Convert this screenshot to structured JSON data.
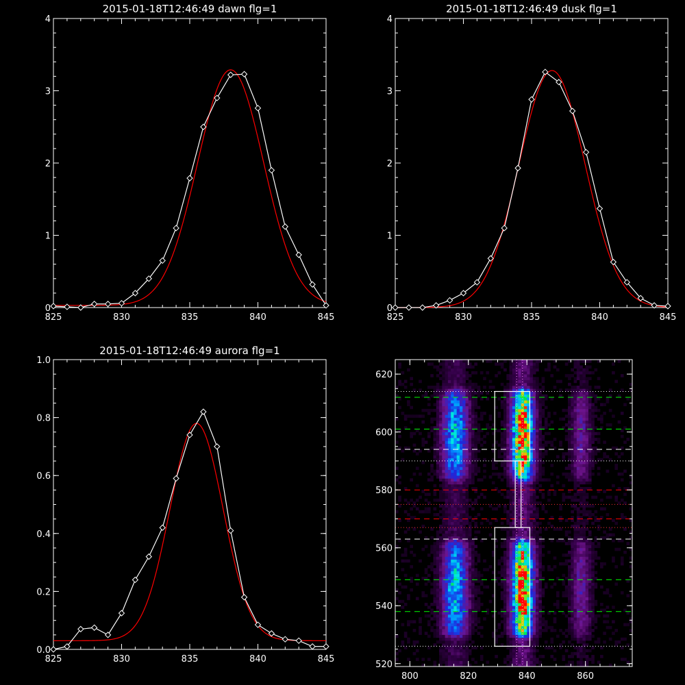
{
  "colors": {
    "background": "#000000",
    "axis": "#ffffff",
    "data_line": "#ffffff",
    "fit_line": "#ff0000",
    "green_guide": "#00ff00",
    "red_guide": "#ff0000",
    "white_guide": "#ffffff"
  },
  "chart_data": [
    {
      "type": "line",
      "title": "2015-01-18T12:46:49 dawn flg=1",
      "xlim": [
        825,
        845
      ],
      "ylim": [
        0,
        4
      ],
      "xticks": [
        "825",
        "830",
        "835",
        "840",
        "845"
      ],
      "yticks": [
        "0",
        "1",
        "2",
        "3",
        "4"
      ],
      "series": [
        {
          "style": "white-line-diamond-markers",
          "x": [
            825,
            826,
            827,
            828,
            829,
            830,
            831,
            832,
            833,
            834,
            835,
            836,
            837,
            838,
            839,
            840,
            841,
            842,
            843,
            844,
            845
          ],
          "y": [
            0.02,
            0.01,
            0.0,
            0.05,
            0.05,
            0.06,
            0.2,
            0.4,
            0.65,
            1.1,
            1.79,
            2.5,
            2.9,
            3.22,
            3.23,
            2.76,
            1.9,
            1.12,
            0.73,
            0.32,
            0.03
          ]
        },
        {
          "style": "red-gaussian-fit",
          "fit": {
            "amplitude": 3.26,
            "center": 838.0,
            "sigma": 2.42,
            "offset": 0.03
          }
        }
      ]
    },
    {
      "type": "line",
      "title": "2015-01-18T12:46:49 dusk flg=1",
      "xlim": [
        825,
        845
      ],
      "ylim": [
        0,
        4
      ],
      "xticks": [
        "825",
        "830",
        "835",
        "840",
        "845"
      ],
      "yticks": [
        "0",
        "1",
        "2",
        "3",
        "4"
      ],
      "series": [
        {
          "style": "white-line-diamond-markers",
          "x": [
            825,
            826,
            827,
            828,
            829,
            830,
            831,
            832,
            833,
            834,
            835,
            836,
            837,
            838,
            839,
            840,
            841,
            842,
            843,
            844,
            845
          ],
          "y": [
            0.0,
            0.0,
            0.0,
            0.03,
            0.1,
            0.2,
            0.35,
            0.68,
            1.1,
            1.93,
            2.88,
            3.26,
            3.12,
            2.72,
            2.15,
            1.37,
            0.63,
            0.35,
            0.13,
            0.03,
            0.02
          ]
        },
        {
          "style": "red-gaussian-fit",
          "fit": {
            "amplitude": 3.28,
            "center": 836.5,
            "sigma": 2.42,
            "offset": 0.0
          }
        }
      ]
    },
    {
      "type": "line",
      "title": "2015-01-18T12:46:49 aurora flg=1",
      "xlim": [
        825,
        845
      ],
      "ylim": [
        0,
        1.0
      ],
      "xticks": [
        "825",
        "830",
        "835",
        "840",
        "845"
      ],
      "yticks": [
        "0.0",
        "0.2",
        "0.4",
        "0.6",
        "0.8",
        "1.0"
      ],
      "series": [
        {
          "style": "white-line-diamond-markers",
          "x": [
            825,
            826,
            827,
            828,
            829,
            830,
            831,
            832,
            833,
            834,
            835,
            836,
            837,
            838,
            839,
            840,
            841,
            842,
            843,
            844,
            845
          ],
          "y": [
            0.0,
            0.01,
            0.07,
            0.075,
            0.05,
            0.125,
            0.24,
            0.32,
            0.42,
            0.59,
            0.74,
            0.82,
            0.7,
            0.41,
            0.18,
            0.085,
            0.055,
            0.035,
            0.03,
            0.01,
            0.01
          ]
        },
        {
          "style": "red-gaussian-fit",
          "fit": {
            "amplitude": 0.75,
            "center": 835.5,
            "sigma": 1.95,
            "offset": 0.03
          }
        }
      ]
    },
    {
      "type": "heatmap",
      "xlim": [
        795,
        876
      ],
      "ylim": [
        519,
        625
      ],
      "xticks": [
        "800",
        "820",
        "840",
        "860"
      ],
      "yticks": [
        "520",
        "540",
        "560",
        "580",
        "600",
        "620"
      ],
      "colormap": "black-purple-blue-cyan-green-yellow-red",
      "emission_columns": [
        {
          "x_center": 815,
          "width": 4,
          "peak": 0.6
        },
        {
          "x_center": 838,
          "width": 3.5,
          "peak": 1.0
        },
        {
          "x_center": 858,
          "width": 3,
          "peak": 0.25
        }
      ],
      "bright_y_ranges": [
        [
          531,
          560
        ],
        [
          585,
          612
        ]
      ],
      "regions": [
        {
          "name": "upper-box",
          "x": [
            829,
            841
          ],
          "y": [
            590,
            614
          ]
        },
        {
          "name": "lower-box",
          "x": [
            829,
            841
          ],
          "y": [
            526,
            567
          ]
        },
        {
          "name": "connector",
          "x": [
            836,
            838
          ],
          "y": [
            567,
            590
          ]
        }
      ],
      "vertical_guides": [
        {
          "x": 836.5,
          "color": "#ff80ff"
        },
        {
          "x": 838.5,
          "color": "#ff80ff"
        }
      ],
      "horizontal_guides": [
        {
          "y": 612,
          "style": "dashed",
          "color": "#00ff00"
        },
        {
          "y": 601,
          "style": "dashed",
          "color": "#00ff00"
        },
        {
          "y": 594,
          "style": "dashed",
          "color": "#ffffff"
        },
        {
          "y": 590,
          "style": "dotted",
          "color": "#ffffff"
        },
        {
          "y": 580,
          "style": "dashed",
          "color": "#ff0000"
        },
        {
          "y": 575,
          "style": "dotted",
          "color": "#ff3333"
        },
        {
          "y": 570,
          "style": "dashed",
          "color": "#ff0000"
        },
        {
          "y": 567,
          "style": "dotted",
          "color": "#ff3333"
        },
        {
          "y": 563,
          "style": "dashed",
          "color": "#ffffff"
        },
        {
          "y": 549,
          "style": "dashed",
          "color": "#00ff00"
        },
        {
          "y": 538,
          "style": "dashed",
          "color": "#00ff00"
        },
        {
          "y": 526,
          "style": "dotted",
          "color": "#ffffff"
        },
        {
          "y": 614,
          "style": "dotted",
          "color": "#ffffff"
        }
      ]
    }
  ]
}
